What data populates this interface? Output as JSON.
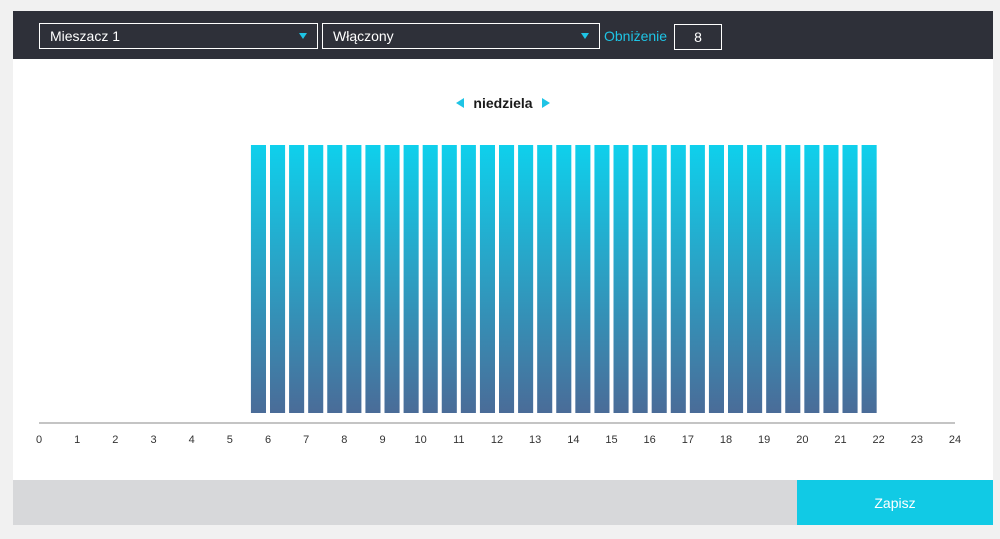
{
  "toolbar": {
    "mode_select": "Mieszacz 1",
    "state_select": "Włączony",
    "reduction_label": "Obniżenie",
    "reduction_value": "8"
  },
  "day_nav": {
    "day": "niedziela"
  },
  "chart_data": {
    "type": "bar",
    "xlim": [
      0,
      24
    ],
    "x_ticks": [
      "0",
      "1",
      "2",
      "3",
      "4",
      "5",
      "6",
      "7",
      "8",
      "9",
      "10",
      "11",
      "12",
      "13",
      "14",
      "15",
      "16",
      "17",
      "18",
      "19",
      "20",
      "21",
      "22",
      "23",
      "24"
    ],
    "active_from_hour": 5.5,
    "active_to_hour": 22,
    "slot_hours": 0.5,
    "values": [
      0,
      0,
      0,
      0,
      0,
      0,
      0,
      0,
      0,
      0,
      0,
      1,
      1,
      1,
      1,
      1,
      1,
      1,
      1,
      1,
      1,
      1,
      1,
      1,
      1,
      1,
      1,
      1,
      1,
      1,
      1,
      1,
      1,
      1,
      1,
      1,
      1,
      1,
      1,
      1,
      1,
      1,
      1,
      1,
      0,
      0,
      0,
      0
    ],
    "colors": {
      "top": "#0fd0ec",
      "bottom": "#4a6c98"
    }
  },
  "footer": {
    "save_label": "Zapisz"
  }
}
